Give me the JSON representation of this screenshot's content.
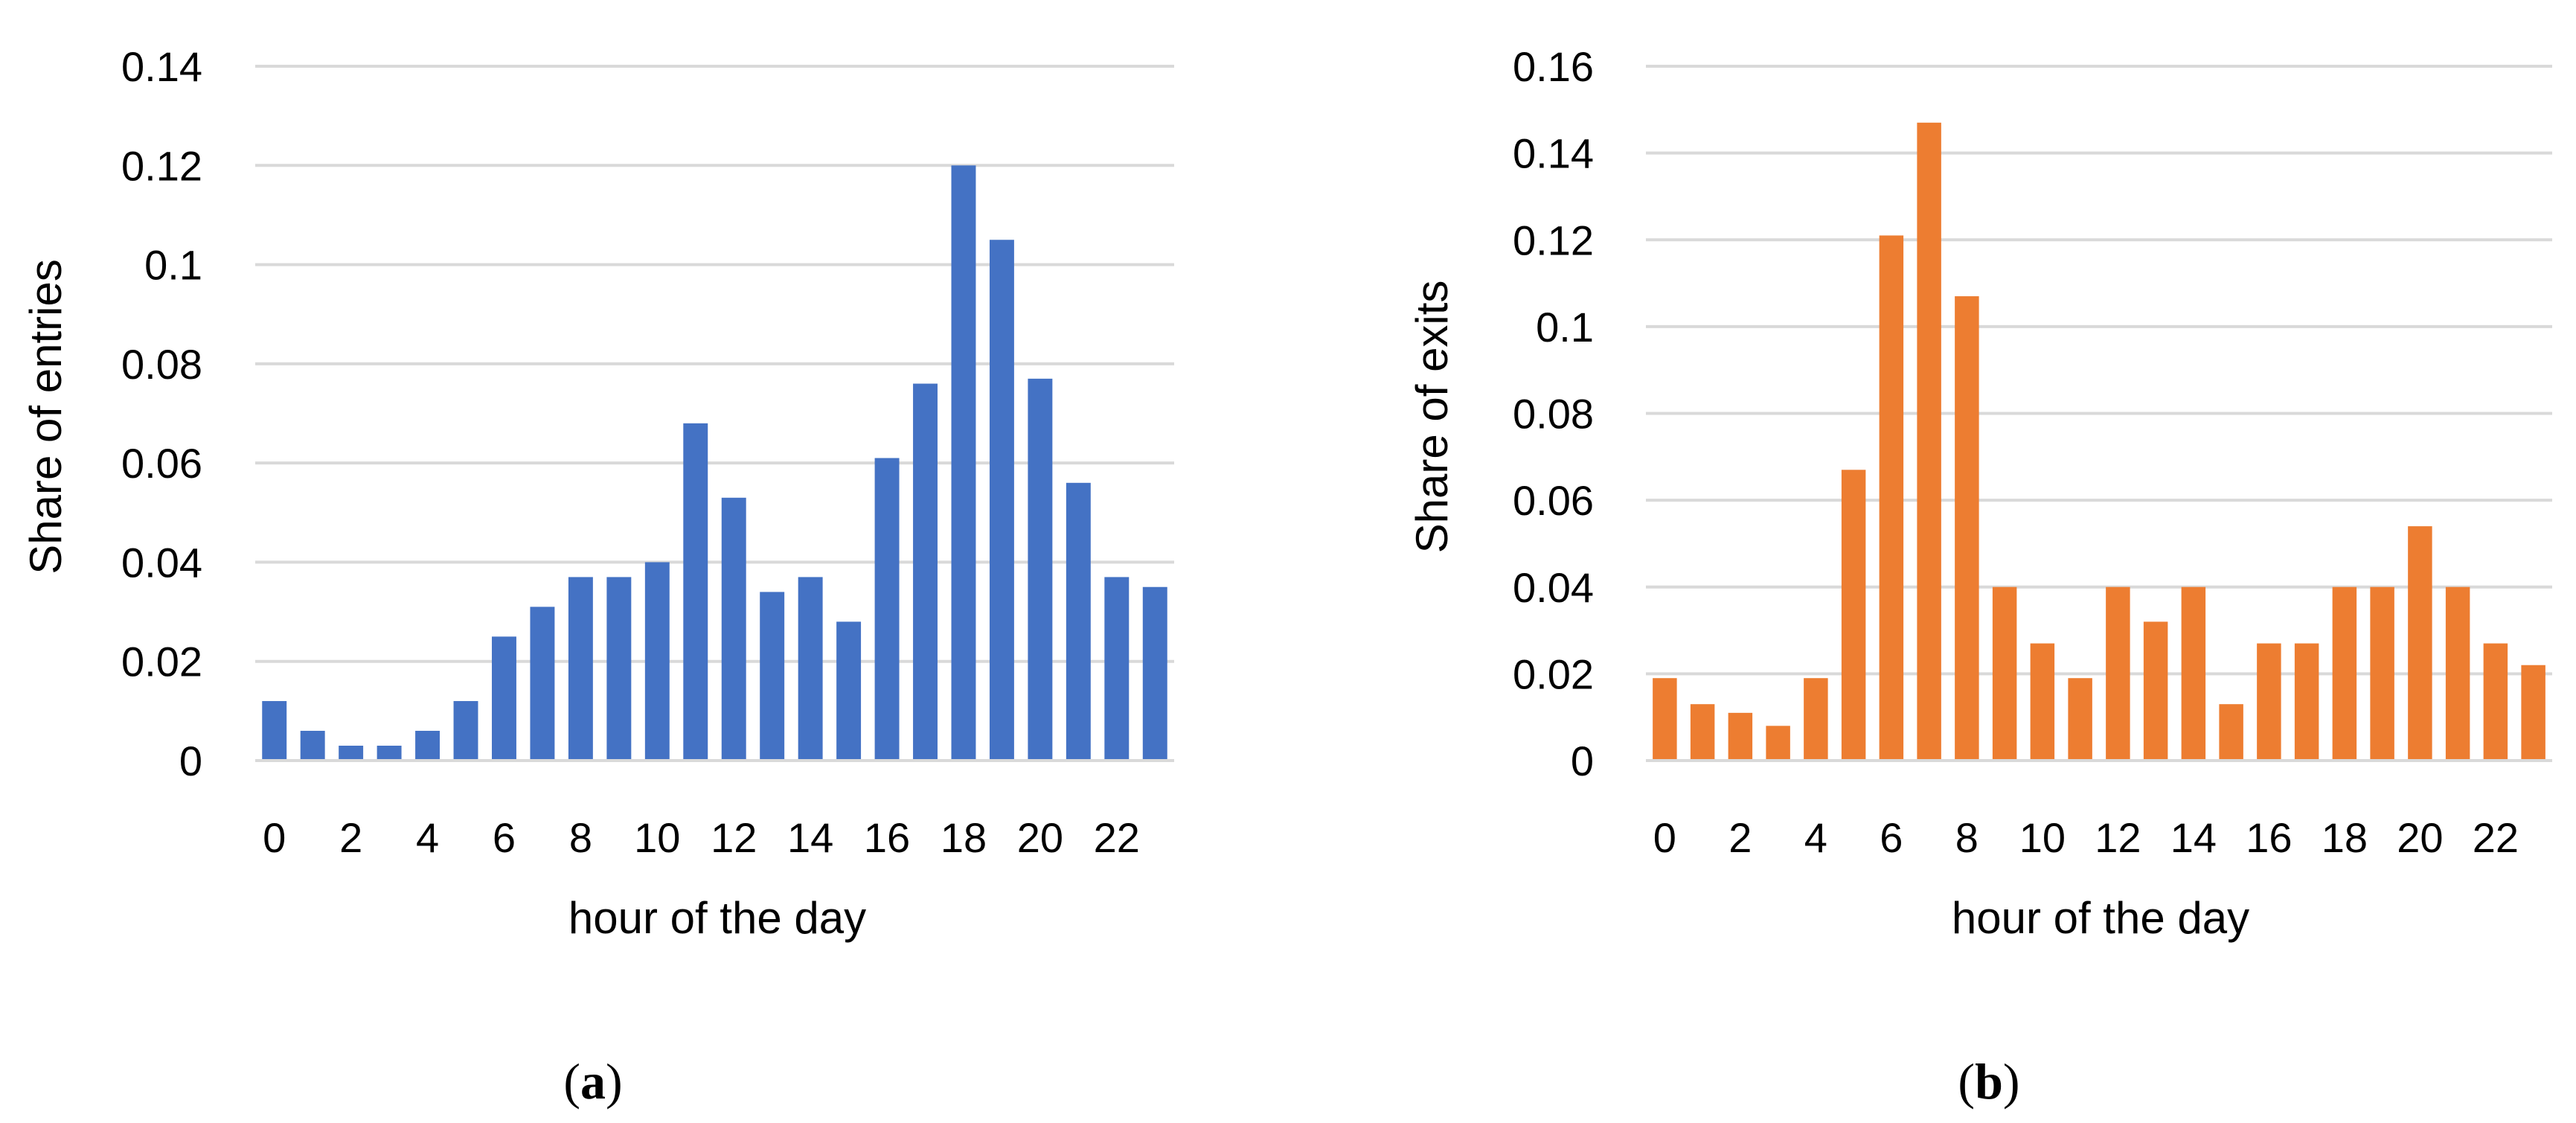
{
  "chart_data": [
    {
      "type": "bar",
      "panel_label": "a",
      "title": "",
      "xlabel": "hour of the day",
      "ylabel": "Share of entries",
      "x": [
        0,
        1,
        2,
        3,
        4,
        5,
        6,
        7,
        8,
        9,
        10,
        11,
        12,
        13,
        14,
        15,
        16,
        17,
        18,
        19,
        20,
        21,
        22,
        23
      ],
      "x_tick_labels": [
        "0",
        "2",
        "4",
        "6",
        "8",
        "10",
        "12",
        "14",
        "16",
        "18",
        "20",
        "22"
      ],
      "values": [
        0.012,
        0.006,
        0.003,
        0.003,
        0.006,
        0.012,
        0.025,
        0.031,
        0.037,
        0.037,
        0.04,
        0.068,
        0.053,
        0.034,
        0.037,
        0.028,
        0.061,
        0.076,
        0.12,
        0.105,
        0.077,
        0.056,
        0.037,
        0.035
      ],
      "ylim": [
        0,
        0.14
      ],
      "y_ticks": [
        0,
        0.02,
        0.04,
        0.06,
        0.08,
        0.1,
        0.12,
        0.14
      ],
      "y_tick_labels": [
        "0",
        "0.02",
        "0.04",
        "0.06",
        "0.08",
        "0.1",
        "0.12",
        "0.14"
      ],
      "color": "#4472C4",
      "grid": true,
      "legend": "none"
    },
    {
      "type": "bar",
      "panel_label": "b",
      "title": "",
      "xlabel": "hour of the day",
      "ylabel": "Share of exits",
      "x": [
        0,
        1,
        2,
        3,
        4,
        5,
        6,
        7,
        8,
        9,
        10,
        11,
        12,
        13,
        14,
        15,
        16,
        17,
        18,
        19,
        20,
        21,
        22,
        23
      ],
      "x_tick_labels": [
        "0",
        "2",
        "4",
        "6",
        "8",
        "10",
        "12",
        "14",
        "16",
        "18",
        "20",
        "22"
      ],
      "values": [
        0.019,
        0.013,
        0.011,
        0.008,
        0.019,
        0.067,
        0.121,
        0.147,
        0.107,
        0.04,
        0.027,
        0.019,
        0.04,
        0.032,
        0.04,
        0.013,
        0.027,
        0.027,
        0.04,
        0.04,
        0.054,
        0.04,
        0.027,
        0.022
      ],
      "ylim": [
        0,
        0.16
      ],
      "y_ticks": [
        0,
        0.02,
        0.04,
        0.06,
        0.08,
        0.1,
        0.12,
        0.14,
        0.16
      ],
      "y_tick_labels": [
        "0",
        "0.02",
        "0.04",
        "0.06",
        "0.08",
        "0.1",
        "0.12",
        "0.14",
        "0.16"
      ],
      "color": "#ED7D31",
      "grid": true,
      "legend": "none"
    }
  ]
}
